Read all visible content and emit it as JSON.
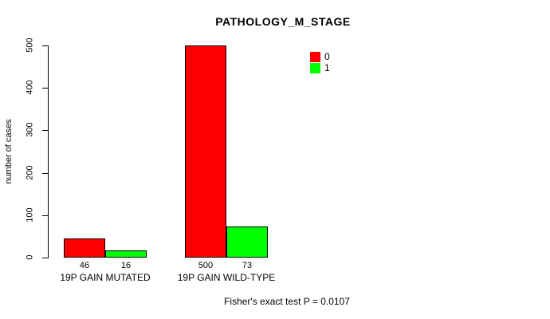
{
  "colors": {
    "series0": "#ff0000",
    "series1": "#00ff00",
    "axis": "#000000",
    "background": "#ffffff"
  },
  "chart_data": {
    "type": "bar",
    "title": "PATHOLOGY_M_STAGE",
    "xlabel": "",
    "ylabel": "number of cases",
    "ylim": [
      0,
      500
    ],
    "yticks": [
      0,
      100,
      200,
      300,
      400,
      500
    ],
    "grid": false,
    "categories": [
      "19P GAIN MUTATED",
      "19P GAIN WILD-TYPE"
    ],
    "series": [
      {
        "name": "0",
        "color": "#ff0000",
        "values": [
          46,
          500
        ]
      },
      {
        "name": "1",
        "color": "#00ff00",
        "values": [
          16,
          73
        ]
      }
    ],
    "legend": {
      "position": "top-right",
      "entries": [
        {
          "label": "0",
          "color": "#ff0000"
        },
        {
          "label": "1",
          "color": "#00ff00"
        }
      ]
    },
    "annotation": "Fisher's exact test P = 0.0107"
  }
}
